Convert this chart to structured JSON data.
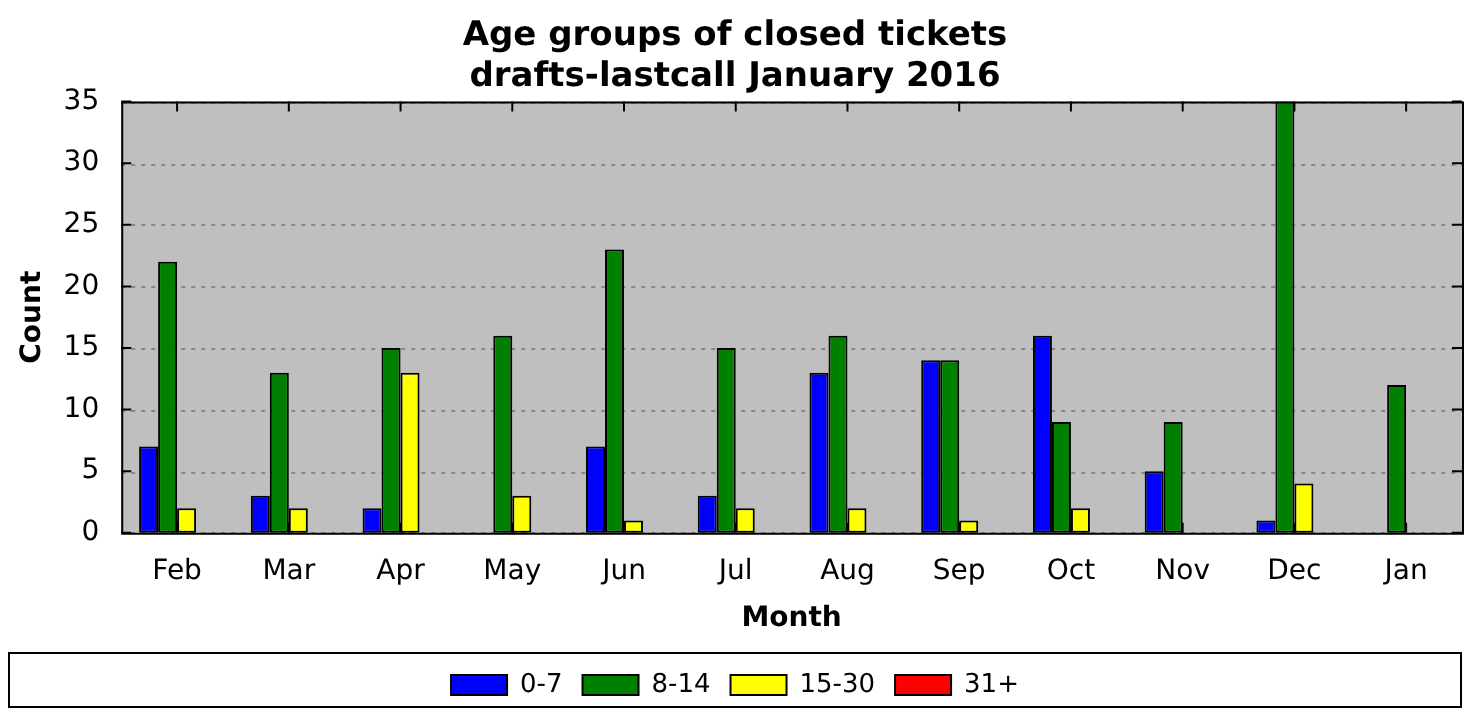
{
  "chart_data": {
    "type": "bar",
    "title": "Age groups of closed tickets\ndrafts-lastcall January 2016",
    "xlabel": "Month",
    "ylabel": "Count",
    "categories": [
      "Feb",
      "Mar",
      "Apr",
      "May",
      "Jun",
      "Jul",
      "Aug",
      "Sep",
      "Oct",
      "Nov",
      "Dec",
      "Jan"
    ],
    "series": [
      {
        "name": "0-7",
        "color": "#0000ff",
        "values": [
          7,
          3,
          2,
          0,
          7,
          3,
          13,
          14,
          16,
          5,
          1,
          0
        ]
      },
      {
        "name": "8-14",
        "color": "#008000",
        "values": [
          22,
          13,
          15,
          16,
          23,
          15,
          16,
          14,
          9,
          9,
          35,
          12
        ]
      },
      {
        "name": "15-30",
        "color": "#ffff00",
        "values": [
          2,
          2,
          13,
          3,
          1,
          2,
          2,
          1,
          2,
          0,
          4,
          0
        ]
      },
      {
        "name": "31+",
        "color": "#ff0000",
        "values": [
          0,
          0,
          0,
          0,
          0,
          0,
          0,
          0,
          0,
          0,
          0,
          0
        ]
      }
    ],
    "ylim": [
      0,
      35
    ],
    "yticks": [
      0,
      5,
      10,
      15,
      20,
      25,
      30,
      35
    ],
    "grid": "y",
    "legend": "bottom"
  }
}
